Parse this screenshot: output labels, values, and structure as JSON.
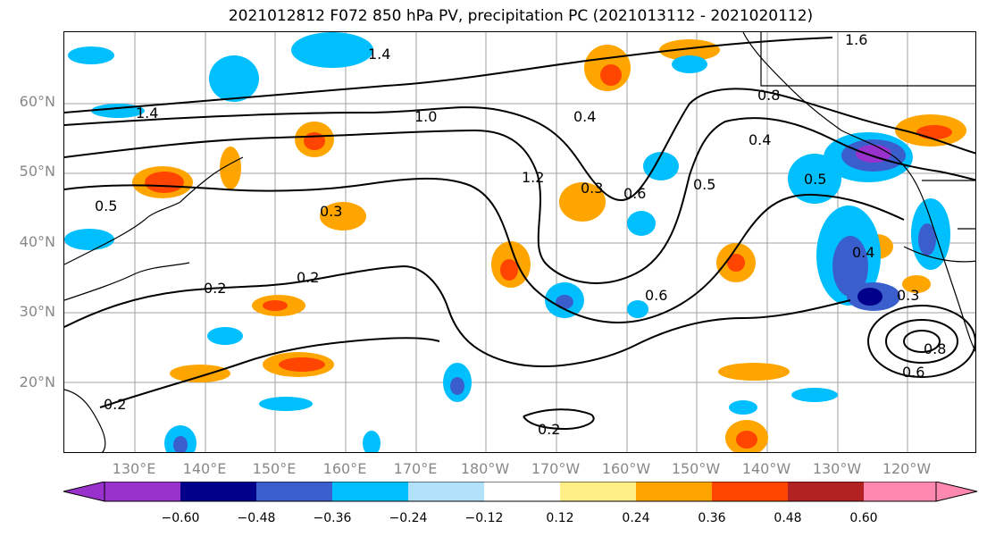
{
  "title": "2021012812 F072 850 hPa PV, precipitation PC (2021013112 - 2021020112)",
  "map": {
    "lat_labels": [
      "60°N",
      "50°N",
      "40°N",
      "30°N",
      "20°N"
    ],
    "lon_labels": [
      "130°E",
      "140°E",
      "150°E",
      "160°E",
      "170°E",
      "180°W",
      "170°W",
      "160°W",
      "150°W",
      "140°W",
      "130°W",
      "120°W"
    ],
    "contour_labels": [
      "1.4",
      "1.0",
      "1.2",
      "1.4",
      "0.4",
      "0.8",
      "0.5",
      "0.4",
      "0.5",
      "0.3",
      "0.2",
      "0.2",
      "0.2",
      "0.3",
      "0.6",
      "0.6",
      "0.4",
      "0.5",
      "0.6",
      "0.8",
      "0.2",
      "1.6",
      "0.3"
    ],
    "land_outline_color": "#000000",
    "grid_color": "#a0a0a0"
  },
  "colorbar": {
    "ticks": [
      "−0.60",
      "−0.48",
      "−0.36",
      "−0.24",
      "−0.12",
      "0.12",
      "0.24",
      "0.36",
      "0.48",
      "0.60"
    ],
    "colors": [
      "#9932cc",
      "#00008b",
      "#3a5fcd",
      "#00bfff",
      "#b2e2fb",
      "#ffffff",
      "#ffed85",
      "#ffa500",
      "#ff4500",
      "#b22222",
      "#ff88b0"
    ]
  }
}
